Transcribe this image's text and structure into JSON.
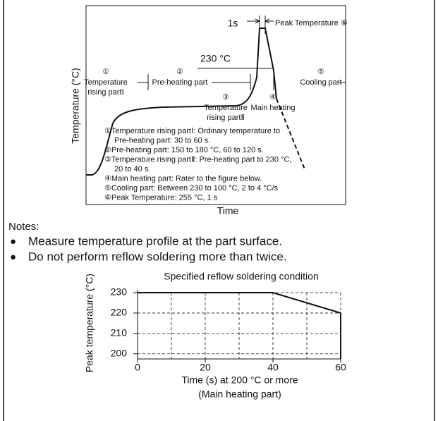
{
  "profile_diagram": {
    "y_label": "Temperature (°C)",
    "x_label": "Time",
    "peak_duration": "1s",
    "peak_label": "Peak Temperature ⑥",
    "threshold_label": "230 °C",
    "stages": [
      {
        "number": "①",
        "lines": [
          "Temperature",
          "rising partⅠ"
        ]
      },
      {
        "number": "②",
        "lines": [
          "Pre-heating part"
        ]
      },
      {
        "number": "③",
        "lines": [
          "Temperature",
          "rising partⅡ"
        ]
      },
      {
        "number": "④",
        "lines": [
          "Main heating"
        ]
      },
      {
        "number": "⑤",
        "lines": [
          "Cooling part"
        ]
      }
    ],
    "descriptions": [
      "①Temperature rising partⅠ: Ordinary temperature to",
      "Pre-heating part: 30 to 60 s.",
      "②Pre-heating part: 150 to 180 °C, 60 to 120 s.",
      "③Temperature rising partⅡ: Pre-heating part to 230 °C,",
      "20 to 40 s.",
      "④Main heating part: Rater to the figure below.",
      "⑤Cooling part: Between 230 to 100 °C, 2 to 4 °C/s",
      "⑥Peak Temperature: 255 °C, 1 s"
    ]
  },
  "notes": {
    "title": "Notes:",
    "bullet": "●",
    "items": [
      "Measure temperature profile at the part surface.",
      "Do not perform reflow soldering more than twice."
    ]
  },
  "chart_data": {
    "type": "line",
    "title": "Specified reflow soldering condition",
    "x_label": "Time (s) at 200 °C or more",
    "x_sublabel": "(Main heating part)",
    "y_label": "Peak temperature (°C)",
    "x": [
      0,
      40,
      60,
      60
    ],
    "values": [
      230,
      230,
      220,
      197.5
    ],
    "color": "#111111",
    "xlim": [
      0,
      60
    ],
    "xticks": [
      0,
      20,
      40,
      60
    ],
    "minor_xticks": [
      10,
      30,
      50
    ],
    "ylim": [
      197.5,
      230
    ],
    "yticks": [
      200,
      210,
      220,
      230
    ],
    "grid": true
  }
}
